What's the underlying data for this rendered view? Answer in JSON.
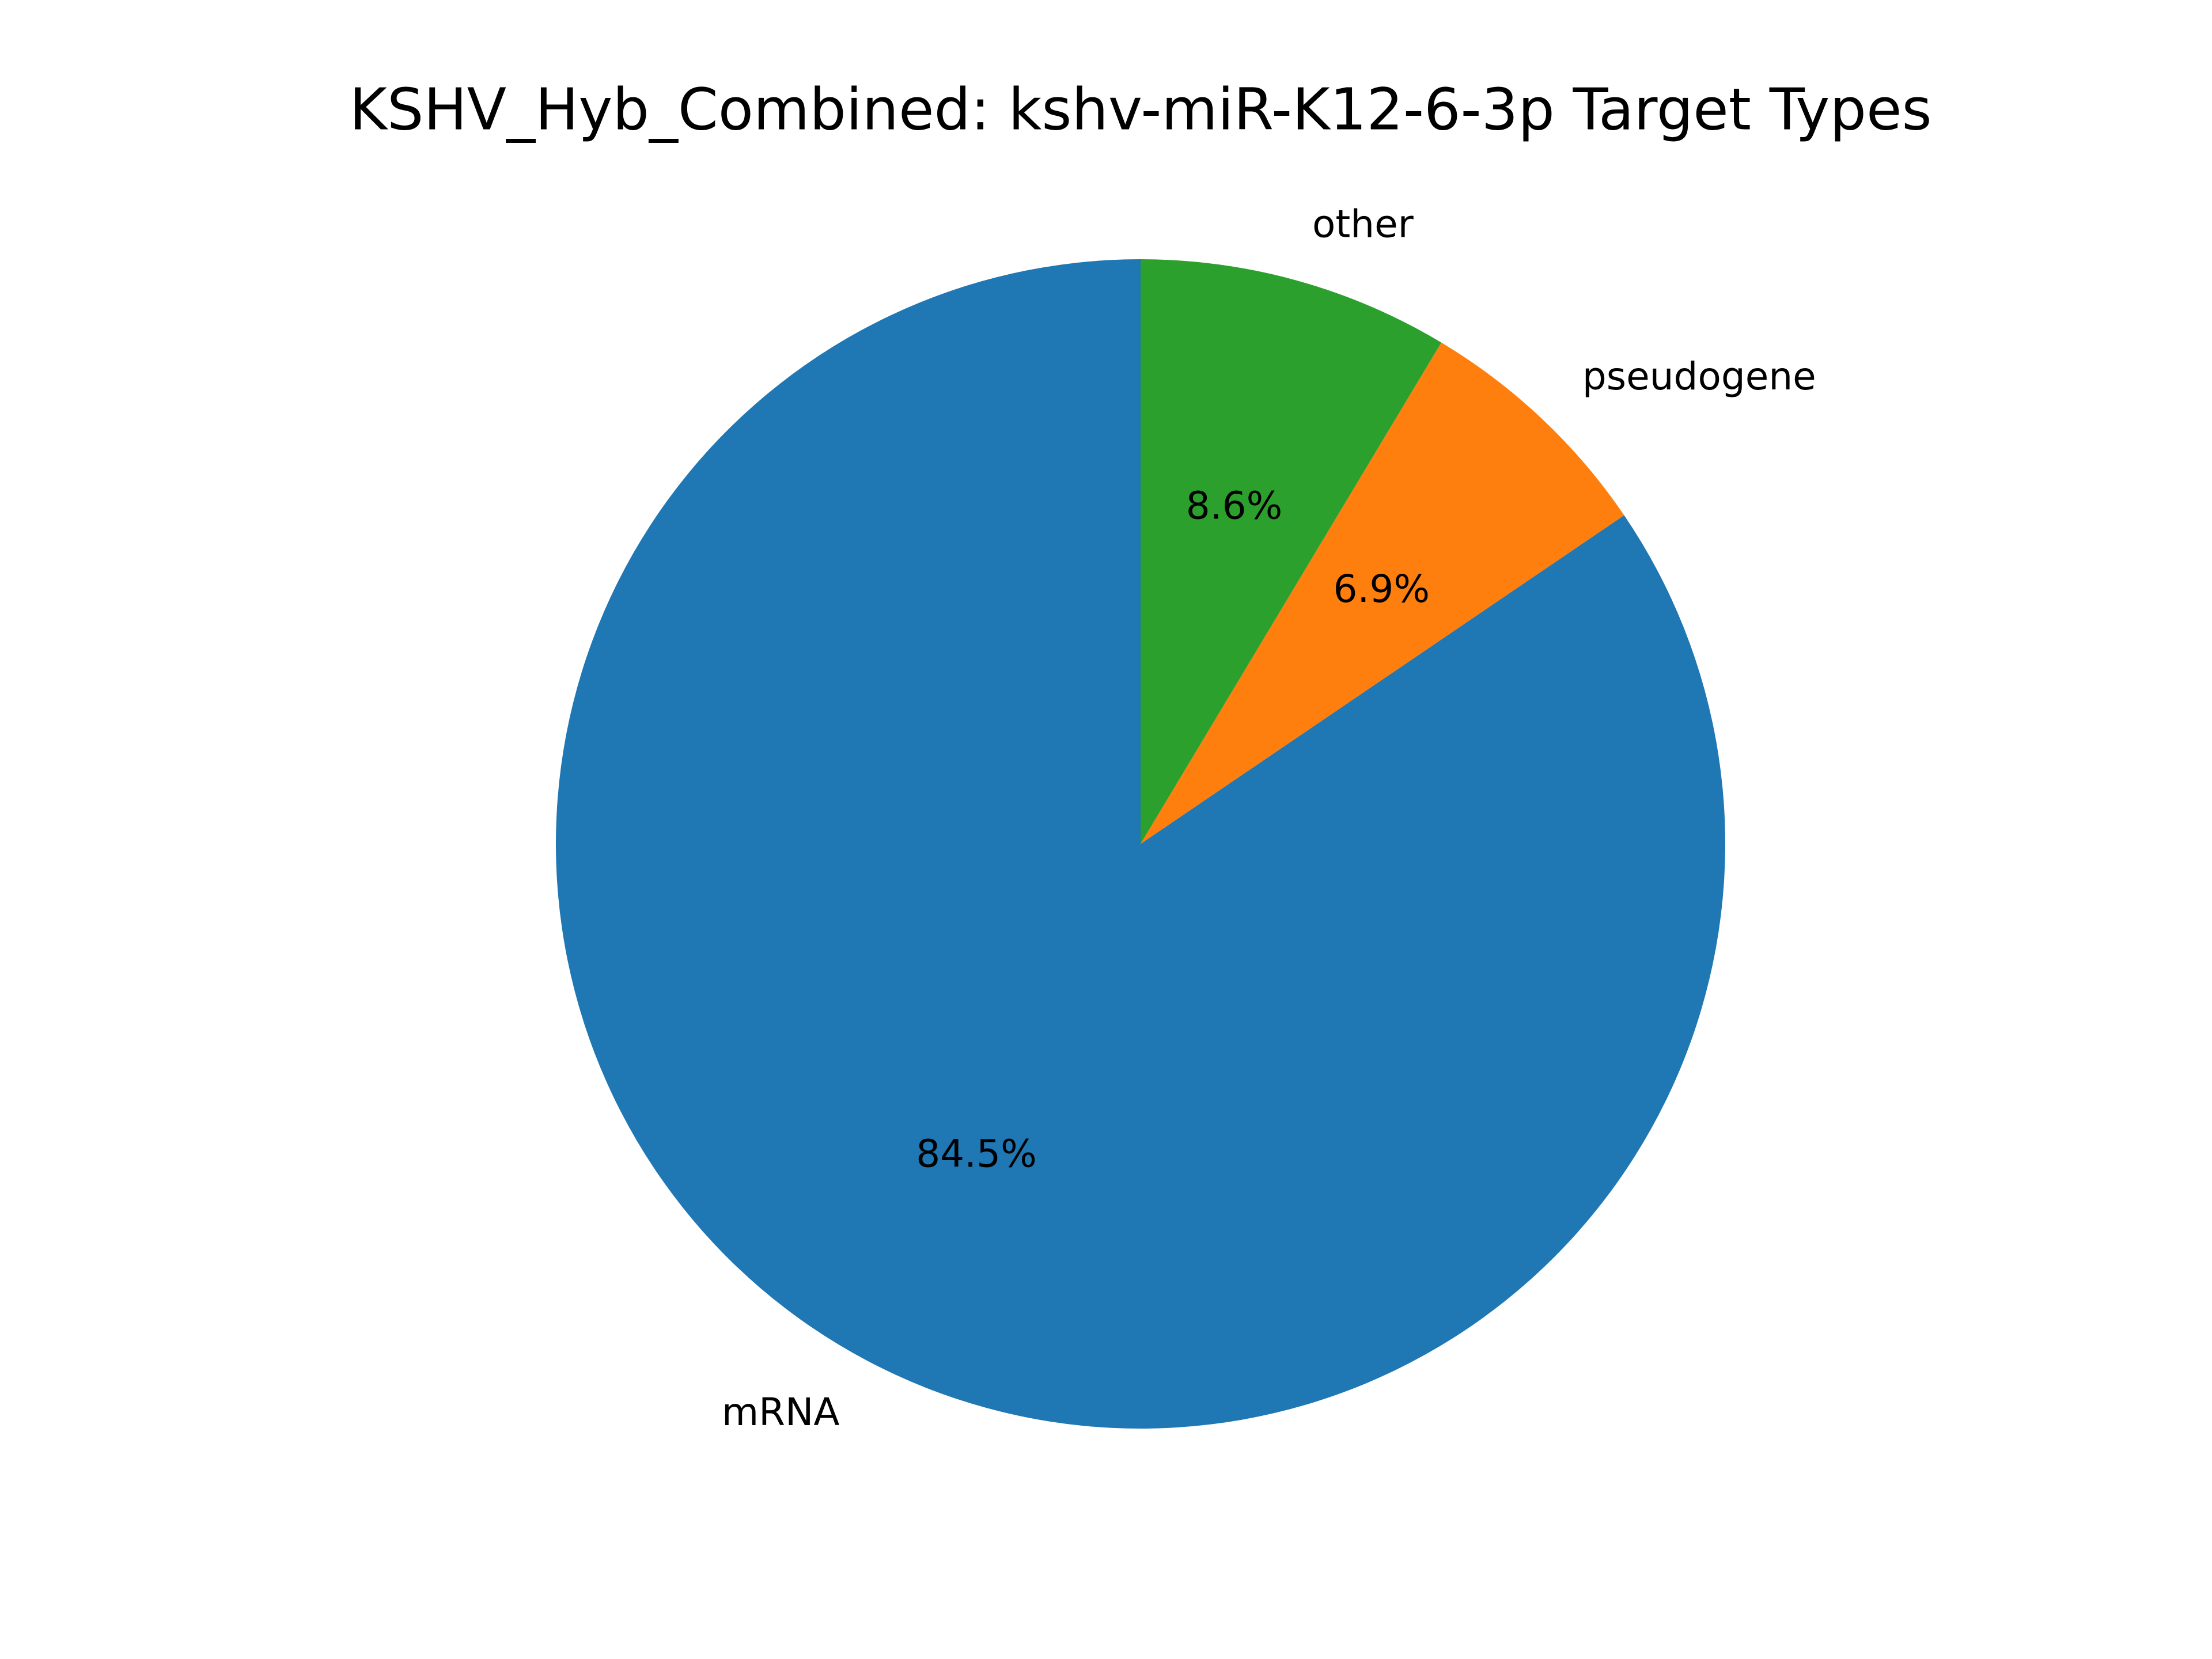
{
  "chart_data": {
    "type": "pie",
    "title": "KSHV_Hyb_Combined: kshv-miR-K12-6-3p Target Types",
    "start_angle_deg": 90,
    "direction": "counterclockwise",
    "slices": [
      {
        "label": "mRNA",
        "value": 84.5,
        "pct_label": "84.5%",
        "color": "#1f77b4"
      },
      {
        "label": "pseudogene",
        "value": 6.9,
        "pct_label": "6.9%",
        "color": "#ff7f0e"
      },
      {
        "label": "other",
        "value": 8.6,
        "pct_label": "8.6%",
        "color": "#2ca02c"
      }
    ]
  }
}
